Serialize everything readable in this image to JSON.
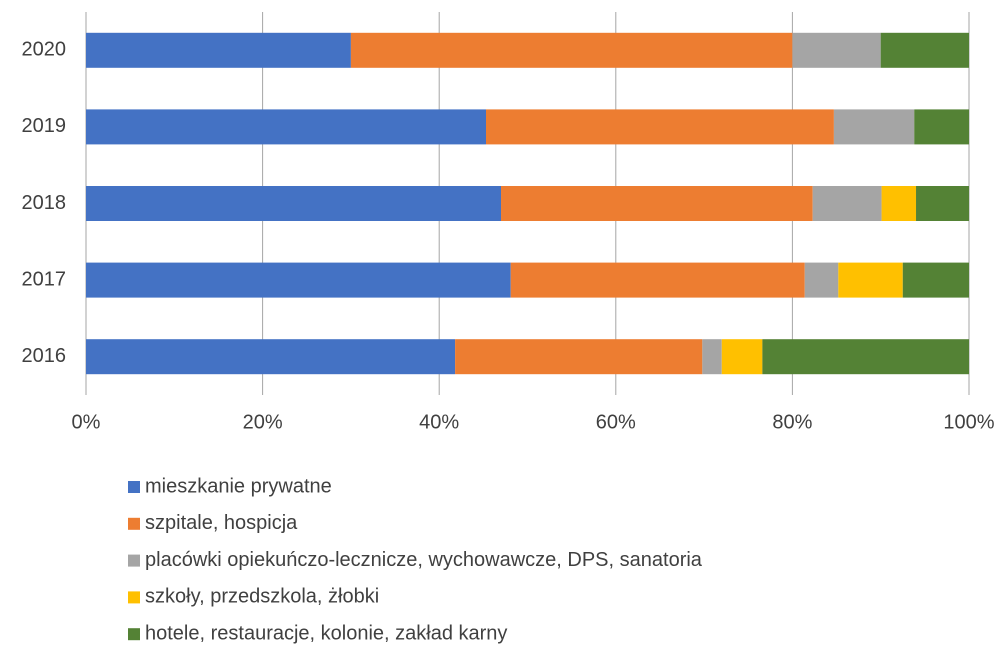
{
  "chart_data": {
    "type": "stacked_bar_horizontal",
    "categories": [
      "2020",
      "2019",
      "2018",
      "2017",
      "2016"
    ],
    "series": [
      {
        "name": "mieszkanie prywatne",
        "color": "#4472c4",
        "values": [
          30,
          45.3,
          47.0,
          48.1,
          41.8
        ]
      },
      {
        "name": "szpitale, hospicja",
        "color": "#ed7d31",
        "values": [
          50,
          39.4,
          35.3,
          33.3,
          28.0
        ]
      },
      {
        "name": "placówki opiekuńczo-lecznicze, wychowawcze, DPS, sanatoria",
        "color": "#a5a5a5",
        "values": [
          10,
          9.1,
          7.8,
          3.8,
          2.2
        ]
      },
      {
        "name": "szkoły, przedszkola, żłobki",
        "color": "#ffc000",
        "values": [
          0,
          0,
          3.9,
          7.3,
          4.6
        ]
      },
      {
        "name": "hotele, restauracje,  kolonie, zakład karny",
        "color": "#548235",
        "values": [
          10,
          6.2,
          6.0,
          7.5,
          23.4
        ]
      }
    ],
    "xlim": [
      0,
      100
    ],
    "xticks": [
      {
        "value": 0,
        "label": "0%"
      },
      {
        "value": 20,
        "label": "20%"
      },
      {
        "value": 40,
        "label": "40%"
      },
      {
        "value": 60,
        "label": "60%"
      },
      {
        "value": 80,
        "label": "80%"
      },
      {
        "value": 100,
        "label": "100%"
      }
    ],
    "grid": true,
    "legend": "bottom"
  }
}
